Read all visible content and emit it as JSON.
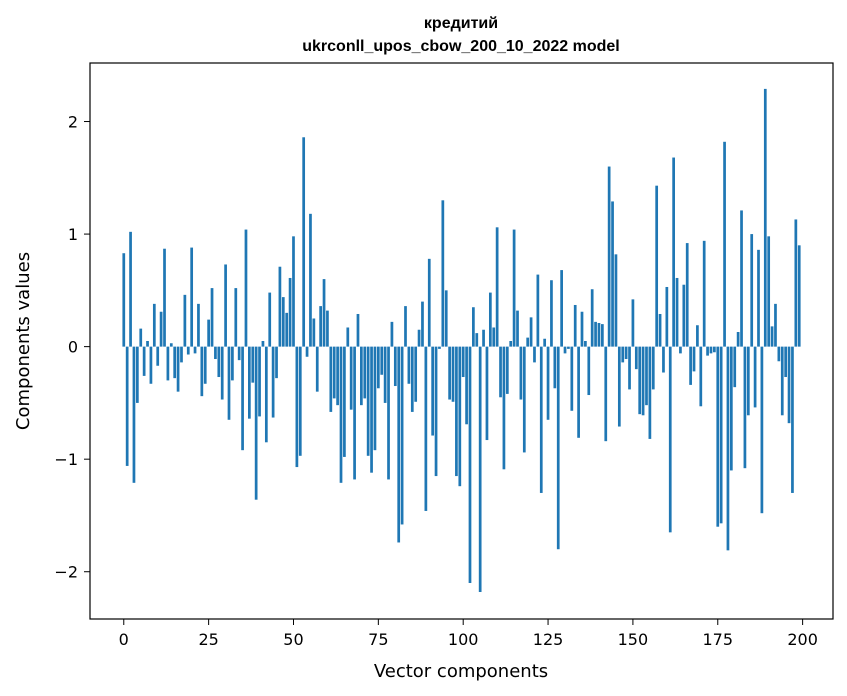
{
  "chart_data": {
    "type": "bar",
    "title_line1": "кредитий",
    "title_line2": "ukrconll_upos_cbow_200_10_2022 model",
    "xlabel": "Vector components",
    "ylabel": "Components values",
    "xlim": [
      -9.95,
      208.95
    ],
    "ylim": [
      -2.42,
      2.52
    ],
    "xticks": [
      0,
      25,
      50,
      75,
      100,
      125,
      150,
      175,
      200
    ],
    "xtick_labels": [
      "0",
      "25",
      "50",
      "75",
      "100",
      "125",
      "150",
      "175",
      "200"
    ],
    "yticks": [
      -2,
      -1,
      0,
      1,
      2
    ],
    "ytick_labels": [
      "−2",
      "−1",
      "0",
      "1",
      "2"
    ],
    "bar_color": "#1f77b4",
    "grid": false,
    "values": [
      0.83,
      -1.06,
      1.02,
      -1.21,
      -0.5,
      0.16,
      -0.26,
      0.05,
      -0.33,
      0.38,
      -0.17,
      0.31,
      0.87,
      -0.3,
      0.03,
      -0.28,
      -0.4,
      -0.14,
      0.46,
      -0.07,
      0.88,
      -0.06,
      0.38,
      -0.44,
      -0.33,
      0.24,
      0.52,
      -0.11,
      -0.27,
      -0.47,
      0.73,
      -0.65,
      -0.3,
      0.52,
      -0.12,
      -0.92,
      1.04,
      -0.64,
      -0.32,
      -1.36,
      -0.62,
      0.05,
      -0.85,
      0.48,
      -0.63,
      -0.28,
      0.71,
      0.44,
      0.3,
      0.61,
      0.98,
      -1.07,
      -0.97,
      1.86,
      -0.09,
      1.18,
      0.25,
      -0.4,
      0.36,
      0.6,
      0.32,
      -0.58,
      -0.46,
      -0.52,
      -1.21,
      -0.98,
      0.17,
      -0.56,
      -1.18,
      0.29,
      -0.52,
      -0.46,
      -0.97,
      -1.12,
      -0.92,
      -0.37,
      -0.25,
      -0.5,
      -1.18,
      0.22,
      -0.35,
      -1.74,
      -1.58,
      0.36,
      -0.33,
      -0.58,
      -0.49,
      0.15,
      0.4,
      -1.46,
      0.78,
      -0.79,
      -1.15,
      -0.02,
      1.3,
      0.5,
      -0.47,
      -0.49,
      -1.15,
      -1.24,
      -0.27,
      -0.69,
      -2.1,
      0.35,
      0.12,
      -2.18,
      0.15,
      -0.83,
      0.48,
      0.17,
      1.06,
      -0.45,
      -1.09,
      -0.42,
      0.05,
      1.04,
      0.32,
      -0.47,
      -0.94,
      0.08,
      0.26,
      -0.14,
      0.64,
      -1.3,
      0.07,
      -0.65,
      0.59,
      -0.37,
      -1.8,
      0.68,
      -0.06,
      -0.02,
      -0.57,
      0.37,
      -0.81,
      0.31,
      0.05,
      -0.43,
      0.51,
      0.22,
      0.21,
      0.2,
      -0.84,
      1.6,
      1.29,
      0.82,
      -0.71,
      -0.14,
      -0.11,
      -0.38,
      0.42,
      -0.2,
      -0.6,
      -0.61,
      -0.52,
      -0.82,
      -0.38,
      1.43,
      0.29,
      -0.23,
      0.53,
      -1.65,
      1.68,
      0.61,
      -0.06,
      0.55,
      0.92,
      -0.34,
      -0.22,
      0.19,
      -0.53,
      0.94,
      -0.08,
      -0.06,
      -0.05,
      -1.6,
      -1.57,
      1.82,
      -1.81,
      -1.1,
      -0.36,
      0.13,
      1.21,
      -1.08,
      -0.61,
      1.0,
      -0.54,
      0.86,
      -1.48,
      2.29,
      0.98,
      0.18,
      0.38,
      -0.13,
      -0.61,
      -0.27,
      -0.68,
      -1.3,
      1.13,
      0.9
    ]
  }
}
